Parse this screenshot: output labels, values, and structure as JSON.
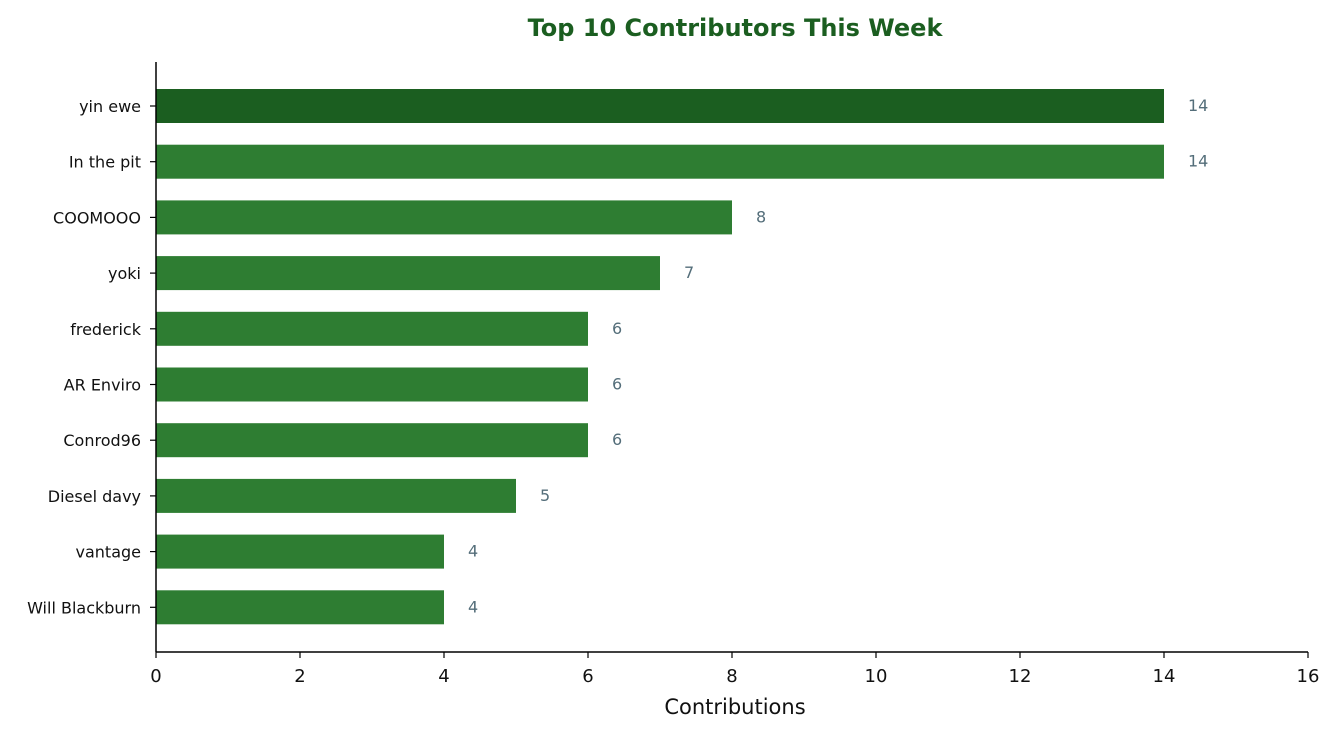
{
  "chart_data": {
    "type": "bar",
    "orientation": "horizontal",
    "title": "Top 10 Contributors This Week",
    "xlabel": "Contributions",
    "ylabel": "",
    "categories": [
      "yin ewe",
      "In the pit",
      "COOMOOO",
      "yoki",
      "frederick",
      "AR Enviro",
      "Conrod96",
      "Diesel davy",
      "vantage",
      "Will Blackburn"
    ],
    "values": [
      14,
      14,
      8,
      7,
      6,
      6,
      6,
      5,
      4,
      4
    ],
    "value_labels": [
      "14",
      "14",
      "8",
      "7",
      "6",
      "6",
      "6",
      "5",
      "4",
      "4"
    ],
    "xlim": [
      0,
      16
    ],
    "xticks": [
      0,
      2,
      4,
      6,
      8,
      10,
      12,
      14,
      16
    ],
    "xtick_labels": [
      "0",
      "2",
      "4",
      "6",
      "8",
      "10",
      "12",
      "14",
      "16"
    ],
    "grid": false,
    "legend": "none",
    "colors": {
      "bar": "#2e7d32",
      "highlight_bar": "#1b5e20",
      "title": "#1b5e20",
      "value_label": "#546e7a",
      "axis": "#000000"
    },
    "highlight_index": 0
  }
}
